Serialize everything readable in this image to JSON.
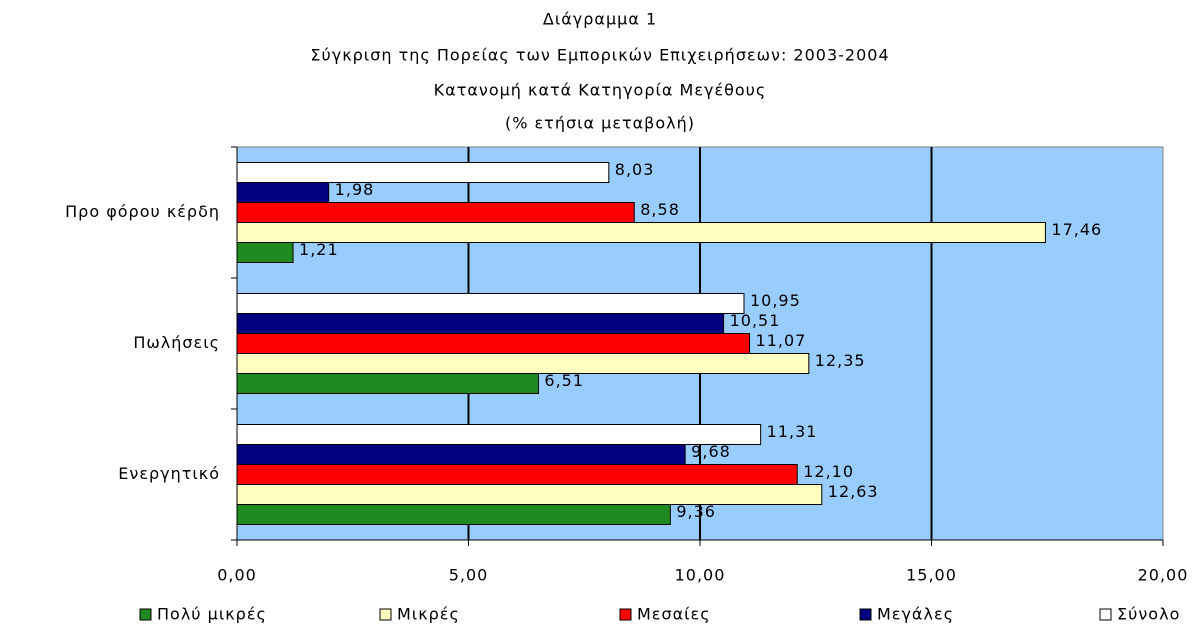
{
  "chart_data": {
    "type": "hbar",
    "title": "Διάγραμμα 1",
    "subtitle": [
      "Σύγκριση της Πορείας των Εμπορικών Επιχειρήσεων: 2003-2004",
      "Κατανομή κατά Κατηγορία Μεγέθους",
      "(% ετήσια μεταβολή)"
    ],
    "categories": [
      "Προ φόρου κέρδη",
      "Πωλήσεις",
      "Ενεργητικό"
    ],
    "series": [
      {
        "name": "Πολύ μικρές",
        "color": "#1f8a1f",
        "values": [
          1.21,
          6.51,
          9.36
        ],
        "value_labels": [
          "1,21",
          "6,51",
          "9,36"
        ]
      },
      {
        "name": "Μικρές",
        "color": "#ffffc0",
        "values": [
          17.46,
          12.35,
          12.63
        ],
        "value_labels": [
          "17,46",
          "12,35",
          "12,63"
        ]
      },
      {
        "name": "Μεσαίες",
        "color": "#ff0000",
        "values": [
          8.58,
          11.07,
          12.1
        ],
        "value_labels": [
          "8,58",
          "11,07",
          "12,10"
        ]
      },
      {
        "name": "Μεγάλες",
        "color": "#000080",
        "values": [
          1.98,
          10.51,
          9.68
        ],
        "value_labels": [
          "1,98",
          "10,51",
          "9,68"
        ]
      },
      {
        "name": "Σύνολο",
        "color": "#ffffff",
        "values": [
          8.03,
          10.95,
          11.31
        ],
        "value_labels": [
          "8,03",
          "10,95",
          "11,31"
        ]
      }
    ],
    "xlim": [
      0,
      20
    ],
    "xticks": [
      {
        "value": 0,
        "label": "0,00"
      },
      {
        "value": 5,
        "label": "5,00"
      },
      {
        "value": 10,
        "label": "10,00"
      },
      {
        "value": 15,
        "label": "15,00"
      },
      {
        "value": 20,
        "label": "20,00"
      }
    ],
    "grid": true,
    "plot_background": "#99ccff",
    "legend": "bottom"
  }
}
